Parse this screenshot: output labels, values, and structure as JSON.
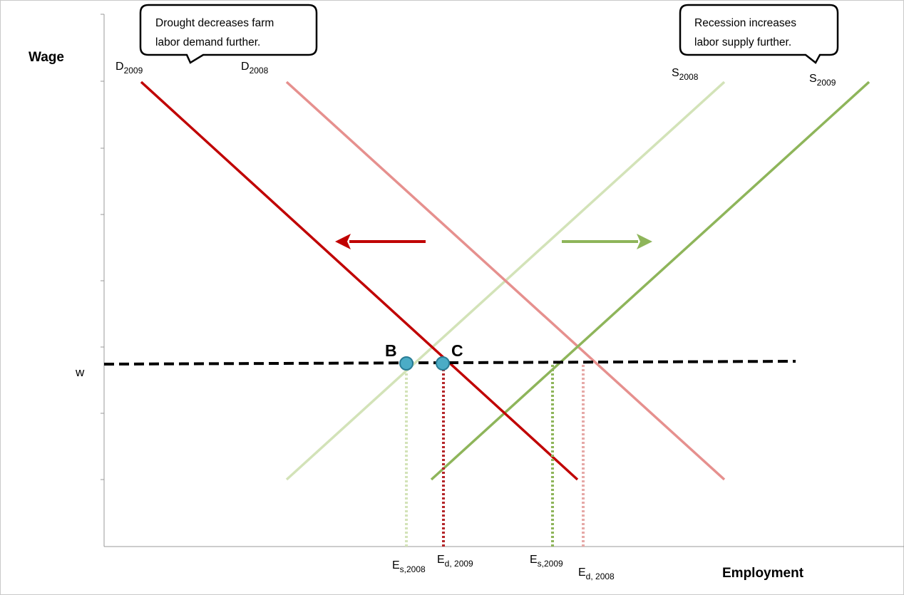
{
  "axis_labels": {
    "y": "Wage",
    "x": "Employment",
    "wage_level": "w"
  },
  "callouts": {
    "drought": [
      "Drought decreases farm",
      "labor demand further."
    ],
    "recession": [
      "Recession increases",
      "labor supply further."
    ]
  },
  "curves": {
    "d2009": {
      "base": "D",
      "sub": "2009",
      "color": "#c00000"
    },
    "d2008": {
      "base": "D",
      "sub": "2008",
      "color": "#e6908e"
    },
    "s2008": {
      "base": "S",
      "sub": "2008",
      "color": "#d3e3b8"
    },
    "s2009": {
      "base": "S",
      "sub": "2009",
      "color": "#8eb55a"
    }
  },
  "points": {
    "b": "B",
    "c": "C"
  },
  "employment_marks": {
    "es2008": {
      "base": "E",
      "sub": "s,2008"
    },
    "ed2009": {
      "base": "E",
      "sub": "d, 2009"
    },
    "es2009": {
      "base": "E",
      "sub": "s,2009"
    },
    "ed2008": {
      "base": "E",
      "sub": "d, 2008"
    }
  },
  "colors": {
    "demand_arrow": "#c00000",
    "supply_arrow": "#8eb55a",
    "wage_line": "#000000",
    "point_fill": "#4bacc6",
    "point_stroke": "#2a7d96"
  }
}
